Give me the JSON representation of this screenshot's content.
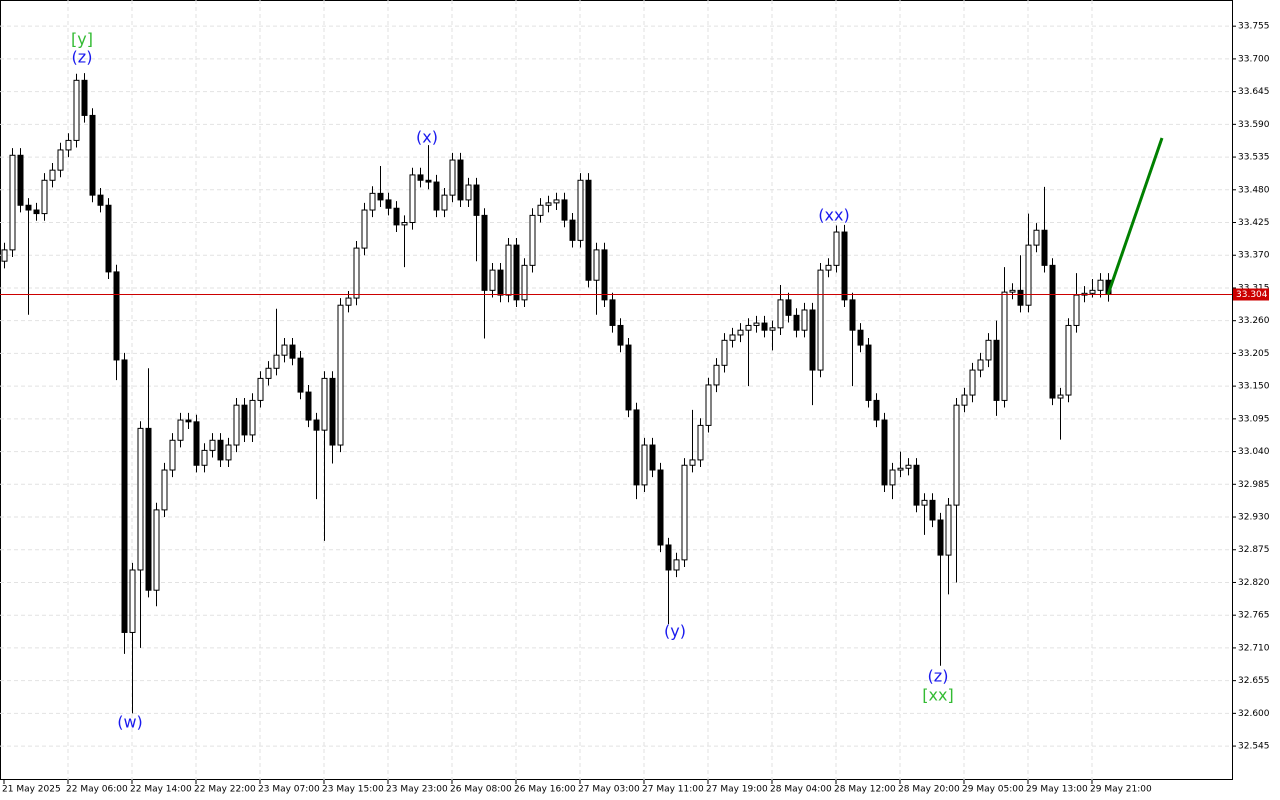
{
  "chart_data": {
    "type": "candlestick",
    "open": [
      33.36,
      33.379,
      33.538,
      33.454,
      33.446,
      33.44,
      33.496,
      33.513,
      33.547,
      33.563,
      33.664,
      33.605,
      33.471,
      33.454,
      33.342,
      33.194,
      32.736,
      32.841,
      33.079,
      32.807,
      32.942,
      33.009,
      33.059,
      33.093,
      33.09,
      33.017,
      33.042,
      33.059,
      33.026,
      33.051,
      33.118,
      33.068,
      33.126,
      33.163,
      33.18,
      33.202,
      33.219,
      33.197,
      33.14,
      33.093,
      33.076,
      33.163,
      33.051,
      33.286,
      33.298,
      33.382,
      33.446,
      33.474,
      33.463,
      33.449,
      33.421,
      33.425,
      33.505,
      33.496,
      33.493,
      33.446,
      33.471,
      33.53,
      33.463,
      33.488,
      33.437,
      33.311,
      33.345,
      33.303,
      33.387,
      33.295,
      33.353,
      33.437,
      33.454,
      33.458,
      33.463,
      33.429,
      33.395,
      33.496,
      33.328,
      33.379,
      33.295,
      33.252,
      33.219,
      33.11,
      32.984,
      33.051,
      33.009,
      32.883,
      32.841,
      32.858,
      33.017,
      33.026,
      33.084,
      33.152,
      33.185,
      33.227,
      33.236,
      33.244,
      33.252,
      33.256,
      33.244,
      33.248,
      33.295,
      33.269,
      33.244,
      33.278,
      33.177,
      33.345,
      33.353,
      33.409,
      33.295,
      33.244,
      33.219,
      33.126,
      33.093,
      32.984,
      33.009,
      33.012,
      33.017,
      32.95,
      32.958,
      32.925,
      32.866,
      32.95,
      33.118,
      33.135,
      33.177,
      33.194,
      33.227,
      33.126,
      33.308,
      33.311,
      33.286,
      33.387,
      33.412,
      33.353,
      33.13,
      33.135,
      33.252,
      33.303,
      33.306,
      33.311,
      33.328
    ],
    "high": [
      33.391,
      33.55,
      33.55,
      33.466,
      33.458,
      33.508,
      33.525,
      33.559,
      33.575,
      33.675,
      33.676,
      33.617,
      33.483,
      33.466,
      33.354,
      33.206,
      32.853,
      33.091,
      33.18,
      32.954,
      33.021,
      33.071,
      33.105,
      33.105,
      33.102,
      33.054,
      33.071,
      33.071,
      33.063,
      33.13,
      33.13,
      33.138,
      33.175,
      33.192,
      33.28,
      33.231,
      33.231,
      33.209,
      33.152,
      33.105,
      33.175,
      33.175,
      33.298,
      33.31,
      33.394,
      33.458,
      33.486,
      33.52,
      33.475,
      33.461,
      33.437,
      33.517,
      33.517,
      33.555,
      33.505,
      33.483,
      33.542,
      33.542,
      33.5,
      33.5,
      33.449,
      33.357,
      33.357,
      33.399,
      33.399,
      33.365,
      33.449,
      33.466,
      33.47,
      33.475,
      33.475,
      33.441,
      33.508,
      33.508,
      33.391,
      33.391,
      33.307,
      33.264,
      33.231,
      33.122,
      33.063,
      33.063,
      33.021,
      32.895,
      32.87,
      33.029,
      33.11,
      33.096,
      33.164,
      33.197,
      33.239,
      33.248,
      33.256,
      33.264,
      33.268,
      33.268,
      33.26,
      33.32,
      33.307,
      33.281,
      33.29,
      33.29,
      33.357,
      33.365,
      33.42,
      33.421,
      33.307,
      33.256,
      33.231,
      33.138,
      33.105,
      33.021,
      33.04,
      33.029,
      33.029,
      32.97,
      32.97,
      32.937,
      32.962,
      33.13,
      33.147,
      33.189,
      33.206,
      33.239,
      33.26,
      33.35,
      33.323,
      33.37,
      33.44,
      33.424,
      33.485,
      33.365,
      33.147,
      33.264,
      33.34,
      33.318,
      33.33,
      33.34,
      33.34
    ],
    "low": [
      33.348,
      33.367,
      33.442,
      33.27,
      33.428,
      33.428,
      33.484,
      33.501,
      33.535,
      33.551,
      33.593,
      33.459,
      33.442,
      33.33,
      33.16,
      32.7,
      32.6,
      32.71,
      32.795,
      32.78,
      32.93,
      32.997,
      33.047,
      33.078,
      33.005,
      33.005,
      33.03,
      33.014,
      33.014,
      33.039,
      33.056,
      33.056,
      33.114,
      33.151,
      33.168,
      33.19,
      33.185,
      33.128,
      33.081,
      32.96,
      32.89,
      33.02,
      33.039,
      33.274,
      33.286,
      33.37,
      33.434,
      33.451,
      33.437,
      33.409,
      33.35,
      33.413,
      33.484,
      33.481,
      33.434,
      33.434,
      33.459,
      33.451,
      33.451,
      33.36,
      33.23,
      33.299,
      33.291,
      33.291,
      33.283,
      33.283,
      33.341,
      33.425,
      33.442,
      33.446,
      33.417,
      33.383,
      33.383,
      33.316,
      33.27,
      33.283,
      33.24,
      33.207,
      33.098,
      32.96,
      32.972,
      32.997,
      32.871,
      32.75,
      32.829,
      32.846,
      33.005,
      33.014,
      33.072,
      33.14,
      33.173,
      33.215,
      33.224,
      33.15,
      33.24,
      33.232,
      33.21,
      33.236,
      33.257,
      33.232,
      33.232,
      33.118,
      33.165,
      33.333,
      33.341,
      33.283,
      33.15,
      33.207,
      33.114,
      33.081,
      32.972,
      32.96,
      32.997,
      33.0,
      32.938,
      32.9,
      32.913,
      32.68,
      32.8,
      32.82,
      33.106,
      33.123,
      33.165,
      33.182,
      33.1,
      33.114,
      33.296,
      33.274,
      33.274,
      33.375,
      33.341,
      33.118,
      33.06,
      33.123,
      33.24,
      33.291,
      33.299,
      33.299,
      33.292
    ],
    "close": [
      33.379,
      33.538,
      33.454,
      33.446,
      33.44,
      33.496,
      33.513,
      33.547,
      33.563,
      33.664,
      33.605,
      33.471,
      33.454,
      33.342,
      33.194,
      32.736,
      32.841,
      33.079,
      32.807,
      32.942,
      33.009,
      33.059,
      33.093,
      33.09,
      33.017,
      33.042,
      33.059,
      33.026,
      33.051,
      33.118,
      33.068,
      33.126,
      33.163,
      33.18,
      33.202,
      33.219,
      33.197,
      33.14,
      33.093,
      33.076,
      33.163,
      33.051,
      33.286,
      33.298,
      33.382,
      33.446,
      33.474,
      33.463,
      33.449,
      33.421,
      33.425,
      33.505,
      33.496,
      33.493,
      33.446,
      33.471,
      33.53,
      33.463,
      33.488,
      33.437,
      33.311,
      33.345,
      33.303,
      33.387,
      33.295,
      33.353,
      33.437,
      33.454,
      33.458,
      33.463,
      33.429,
      33.395,
      33.496,
      33.328,
      33.379,
      33.295,
      33.252,
      33.219,
      33.11,
      32.984,
      33.051,
      33.009,
      32.883,
      32.841,
      32.858,
      33.017,
      33.026,
      33.084,
      33.152,
      33.185,
      33.227,
      33.236,
      33.244,
      33.252,
      33.256,
      33.244,
      33.248,
      33.295,
      33.269,
      33.244,
      33.278,
      33.177,
      33.345,
      33.353,
      33.409,
      33.295,
      33.244,
      33.219,
      33.126,
      33.093,
      32.984,
      33.009,
      33.012,
      33.017,
      32.95,
      32.958,
      32.925,
      32.866,
      32.95,
      33.118,
      33.135,
      33.177,
      33.194,
      33.227,
      33.126,
      33.308,
      33.311,
      33.286,
      33.387,
      33.412,
      33.353,
      33.13,
      33.135,
      33.252,
      33.303,
      33.306,
      33.311,
      33.328,
      33.304
    ],
    "x_labels": [
      "21 May 2025",
      "22 May 06:00",
      "22 May 14:00",
      "22 May 22:00",
      "23 May 07:00",
      "23 May 15:00",
      "23 May 23:00",
      "26 May 08:00",
      "26 May 16:00",
      "27 May 03:00",
      "27 May 11:00",
      "27 May 19:00",
      "28 May 04:00",
      "28 May 12:00",
      "28 May 20:00",
      "29 May 05:00",
      "29 May 13:00",
      "29 May 21:00"
    ],
    "ylim": [
      32.488,
      33.799
    ],
    "yticks": [
      32.545,
      {
        "value": 32.6,
        "label": "32.600"
      },
      32.655,
      {
        "value": 32.71,
        "label": "32.710"
      },
      32.765,
      {
        "value": 32.82,
        "label": "32.820"
      },
      32.875,
      {
        "value": 32.93,
        "label": "32.930"
      },
      32.985,
      {
        "value": 33.04,
        "label": "33.040"
      },
      33.095,
      {
        "value": 33.15,
        "label": "33.150"
      },
      33.205,
      {
        "value": 33.26,
        "label": "33.260"
      },
      33.315,
      {
        "value": 33.37,
        "label": "33.370"
      },
      33.425,
      {
        "value": 33.48,
        "label": "33.480"
      },
      33.535,
      {
        "value": 33.59,
        "label": "33.590"
      },
      33.645,
      {
        "value": 33.7,
        "label": "33.700"
      },
      33.755
    ],
    "grid": true,
    "current_price": 33.304,
    "current_price_color": "#cc0000",
    "forecast": {
      "color": "#008000",
      "values": [
        33.304,
        33.567
      ]
    },
    "annotations": [
      {
        "text": "[y]",
        "color": "#33bb33"
      },
      {
        "text": "(z)",
        "color": "#1a1aee"
      },
      {
        "text": "(w)",
        "color": "#1a1aee"
      },
      {
        "text": "(x)",
        "color": "#1a1aee"
      },
      {
        "text": "(y)",
        "color": "#1a1aee"
      },
      {
        "text": "(xx)",
        "color": "#1a1aee"
      },
      {
        "text": "(z)",
        "color": "#1a1aee"
      },
      {
        "text": "[xx]",
        "color": "#33bb33"
      }
    ]
  }
}
